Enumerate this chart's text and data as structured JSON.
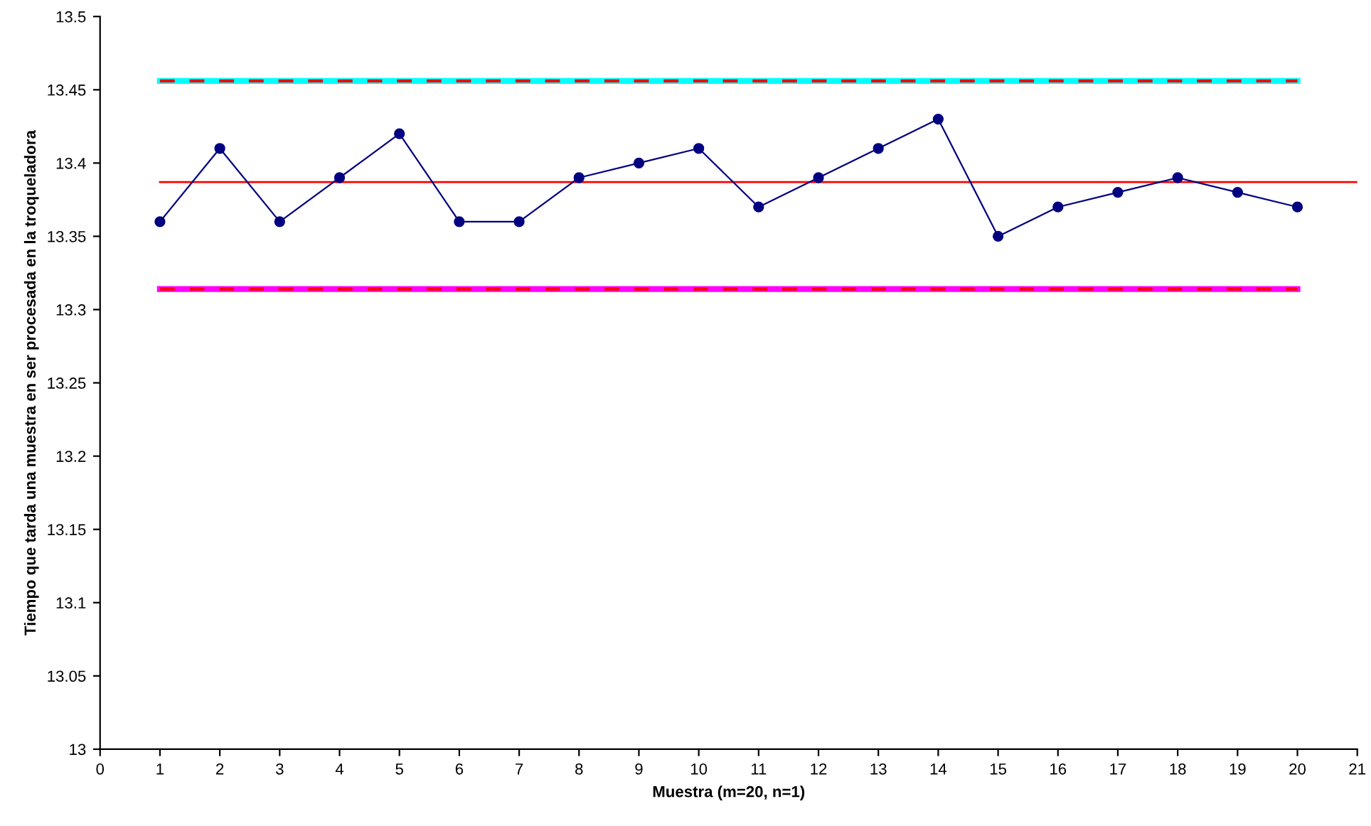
{
  "chart_data": {
    "type": "line",
    "xlabel": "Muestra (m=20, n=1)",
    "ylabel": "Tiempo que tarda una muestra en ser procesada en la troqueladora",
    "x": [
      1,
      2,
      3,
      4,
      5,
      6,
      7,
      8,
      9,
      10,
      11,
      12,
      13,
      14,
      15,
      16,
      17,
      18,
      19,
      20
    ],
    "series": [
      {
        "color": "#00ffff",
        "line_style": "solid",
        "marker": "none",
        "x": [
          1,
          20
        ],
        "values": [
          13.456,
          13.456
        ]
      },
      {
        "color": "#ff0000",
        "line_style": "dashed",
        "marker": "none",
        "x": [
          1,
          20
        ],
        "values": [
          13.456,
          13.456
        ]
      },
      {
        "color": "#ff00ff",
        "line_style": "solid",
        "marker": "none",
        "x": [
          1,
          20
        ],
        "values": [
          13.314,
          13.314
        ]
      },
      {
        "color": "#ff0000",
        "line_style": "dashed",
        "marker": "none",
        "x": [
          1,
          20
        ],
        "values": [
          13.314,
          13.314
        ]
      },
      {
        "color": "#ff0000",
        "line_style": "solid",
        "marker": "none",
        "x": [
          1,
          21
        ],
        "values": [
          13.387,
          13.387
        ]
      },
      {
        "color": "#000080",
        "line_style": "solid",
        "marker": "circle",
        "values": [
          13.36,
          13.41,
          13.36,
          13.39,
          13.42,
          13.36,
          13.36,
          13.39,
          13.4,
          13.41,
          13.37,
          13.39,
          13.41,
          13.43,
          13.35,
          13.37,
          13.38,
          13.39,
          13.38,
          13.37
        ]
      }
    ],
    "xlim": [
      0,
      21
    ],
    "xticks": [
      0,
      1,
      2,
      3,
      4,
      5,
      6,
      7,
      8,
      9,
      10,
      11,
      12,
      13,
      14,
      15,
      16,
      17,
      18,
      19,
      20,
      21
    ],
    "ylim": [
      13,
      13.5
    ],
    "yticks": [
      13,
      13.05,
      13.1,
      13.15,
      13.2,
      13.25,
      13.3,
      13.35,
      13.4,
      13.45,
      13.5
    ],
    "grid": false,
    "legend": false
  }
}
